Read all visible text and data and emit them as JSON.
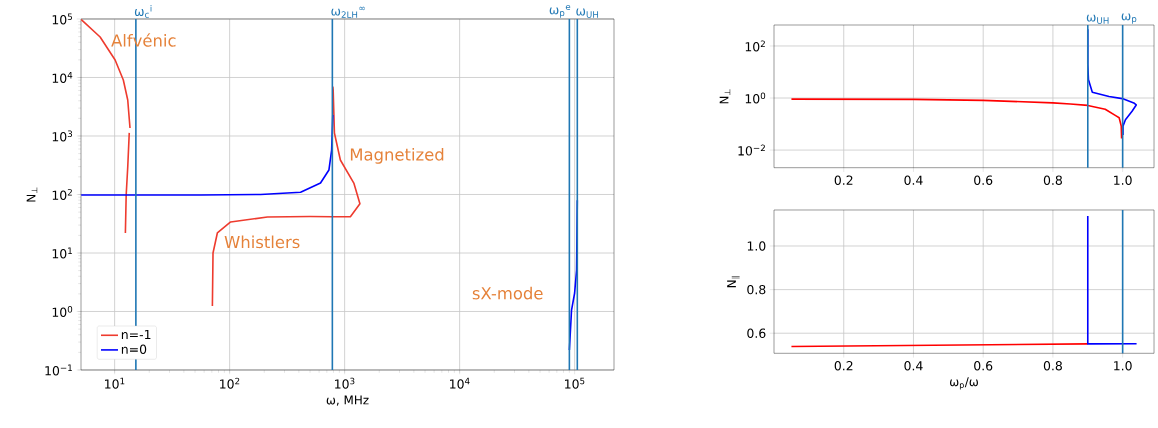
{
  "chart_data": [
    {
      "type": "line",
      "xlabel": "ω, MHz",
      "ylabel": "N$_{⊥}$",
      "log": "xy",
      "grid": true,
      "legend": "bottom left",
      "xlim": [
        5.1,
        220000
      ],
      "ylim": [
        0.1,
        100000
      ],
      "xticks": [
        {
          "value": 10,
          "label": "10$^{1}$"
        },
        {
          "value": 100,
          "label": "10$^{2}$"
        },
        {
          "value": 1000,
          "label": "10$^{3}$"
        },
        {
          "value": 10000,
          "label": "10$^{4}$"
        },
        {
          "value": 100000,
          "label": "10$^{5}$"
        }
      ],
      "yticks": [
        {
          "value": 0.1,
          "label": "10$^{−1}$"
        },
        {
          "value": 1,
          "label": "10$^{0}$"
        },
        {
          "value": 10,
          "label": "10$^{1}$"
        },
        {
          "value": 100,
          "label": "10$^{2}$"
        },
        {
          "value": 1000,
          "label": "10$^{3}$"
        },
        {
          "value": 10000,
          "label": "10$^{4}$"
        },
        {
          "value": 100000,
          "label": "10$^{5}$"
        }
      ],
      "series": [
        {
          "name": "n=-1",
          "color": "#ee3b2e",
          "x": [
            5.12,
            7.48,
            10.1,
            11.9,
            13.0,
            13.6,
            null,
            13.4,
            13.0,
            12.6,
            12.4,
            null,
            70.8,
            71.7,
            78.2,
            102,
            213,
            500,
            782,
            1122,
            1358,
            1202,
            918,
            815,
            795,
            790
          ],
          "values": [
            98000,
            49200,
            19900,
            9060,
            4120,
            1370,
            null,
            1130,
            295,
            98,
            22,
            null,
            1.24,
            10,
            22,
            33.9,
            41.2,
            42,
            41.7,
            41.7,
            69.7,
            157,
            389,
            1125,
            6110,
            7000
          ]
        },
        {
          "name": "n=0",
          "color": "#0000ff",
          "x": [
            5.12,
            56,
            186,
            414,
            617,
            730,
            771,
            789,
            null,
            90000,
            94000,
            100000,
            104000,
            105500
          ],
          "values": [
            98,
            98,
            100,
            109,
            157,
            262,
            575,
            2290,
            null,
            0.22,
            1.06,
            2.07,
            5.1,
            80
          ]
        }
      ],
      "ref_lines": [
        {
          "axis": "x",
          "value": 15.3,
          "label": "ω$_{c}$$^{i}$",
          "color": "#1f77b4"
        },
        {
          "axis": "x",
          "value": 782,
          "label": "ω$_{2LH}$$^{∞}$",
          "color": "#1f77b4"
        },
        {
          "axis": "x",
          "value": 90000,
          "label": "ω$_{p}$$^{e}$",
          "color": "#1f77b4"
        },
        {
          "axis": "x",
          "value": 105500,
          "label": "ω$_{UH}$",
          "color": "#1f77b4"
        }
      ],
      "annotations": [
        "Alfvénic",
        "Whistlers",
        "Magnetized",
        "sX-mode"
      ]
    },
    {
      "type": "line",
      "ylabel": "N$_{⊥}$",
      "log": "y",
      "grid": true,
      "xlim": [
        0.0,
        1.09
      ],
      "ylim": [
        0.0021,
        640
      ],
      "xticks": [
        0.2,
        0.4,
        0.6,
        0.8,
        {
          "value": 1.0,
          "label": "1.0"
        }
      ],
      "yticks": [
        {
          "value": 0.01,
          "label": "10$^{−2}$"
        },
        {
          "value": 1,
          "label": "10$^{0}$"
        },
        {
          "value": 100,
          "label": "10$^{2}$"
        }
      ],
      "series": [
        {
          "color": "#ff0000",
          "x": [
            0.05,
            0.4,
            0.6,
            0.8,
            0.85,
            0.9,
            0.95,
            0.98,
            0.99,
            0.996,
            0.997
          ],
          "values": [
            0.91,
            0.89,
            0.81,
            0.65,
            0.59,
            0.52,
            0.37,
            0.21,
            0.175,
            0.083,
            0.028
          ]
        },
        {
          "color": "#0000ff",
          "x": [
            0.9,
            0.9,
            0.902,
            0.913,
            0.961,
            0.999,
            1.032,
            1.039,
            1.027,
            1.008,
            1.001,
            1.001
          ],
          "values": [
            437,
            20,
            5,
            1.66,
            1.14,
            0.95,
            0.65,
            0.54,
            0.31,
            0.146,
            0.083,
            0.038
          ]
        }
      ],
      "ref_lines": [
        {
          "axis": "x",
          "value": 0.9,
          "label": "ω$_{UH}$",
          "color": "#1f77b4"
        },
        {
          "axis": "x",
          "value": 1.0,
          "label": "ω$_{p}$",
          "color": "#1f77b4"
        }
      ]
    },
    {
      "type": "line",
      "xlabel": "ω$_{p}$/ω",
      "ylabel": "N$_{∥}$",
      "grid": true,
      "xlim": [
        0.0,
        1.09
      ],
      "ylim": [
        0.508,
        1.165
      ],
      "xticks": [
        0.2,
        0.4,
        0.6,
        0.8,
        {
          "value": 1.0,
          "label": "1.0"
        }
      ],
      "yticks": [
        0.6,
        0.8,
        {
          "value": 1.0,
          "label": "1.0"
        }
      ],
      "series": [
        {
          "color": "#ff0000",
          "x": [
            0.05,
            0.9
          ],
          "values": [
            0.539,
            0.551
          ]
        },
        {
          "color": "#0000ff",
          "x": [
            0.9,
            0.9,
            1.04
          ],
          "values": [
            1.137,
            0.551,
            0.552
          ]
        }
      ],
      "ref_lines": [
        {
          "axis": "x",
          "value": 1.0,
          "color": "#1f77b4"
        }
      ]
    }
  ]
}
